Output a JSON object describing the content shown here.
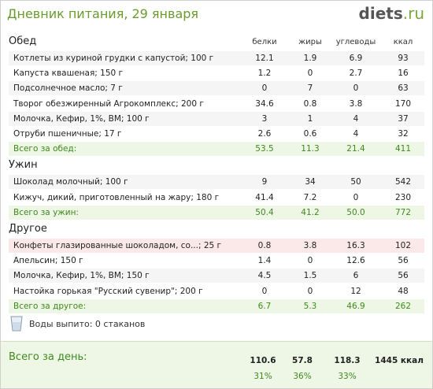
{
  "header": {
    "title": "Дневник питания, 29 января",
    "logo_main": "diets",
    "logo_tld": ".ru"
  },
  "columns": {
    "protein": "белки",
    "fat": "жиры",
    "carbs": "углеводы",
    "kcal": "ккал"
  },
  "sections": [
    {
      "title": "Обед",
      "rows": [
        {
          "name": "Котлеты из куриной грудки с капустой; 100 г",
          "protein": "12.1",
          "fat": "1.9",
          "carbs": "6.9",
          "kcal": "93"
        },
        {
          "name": "Капуста квашеная; 150 г",
          "protein": "1.2",
          "fat": "0",
          "carbs": "2.7",
          "kcal": "16"
        },
        {
          "name": "Подсолнечное масло; 7 г",
          "protein": "0",
          "fat": "7",
          "carbs": "0",
          "kcal": "63"
        },
        {
          "name": "Творог обезжиренный Агрокомплекс; 200 г",
          "protein": "34.6",
          "fat": "0.8",
          "carbs": "3.8",
          "kcal": "170"
        },
        {
          "name": "Молочка, Кефир, 1%, ВМ; 100 г",
          "protein": "3",
          "fat": "1",
          "carbs": "4",
          "kcal": "37"
        },
        {
          "name": "Отруби пшеничные; 17 г",
          "protein": "2.6",
          "fat": "0.6",
          "carbs": "4",
          "kcal": "32"
        }
      ],
      "total": {
        "name": "Всего за обед:",
        "protein": "53.5",
        "fat": "11.3",
        "carbs": "21.4",
        "kcal": "411"
      }
    },
    {
      "title": "Ужин",
      "rows": [
        {
          "name": "Шоколад молочный; 100 г",
          "protein": "9",
          "fat": "34",
          "carbs": "50",
          "kcal": "542"
        },
        {
          "name": "Кижуч, дикий, приготовленный на жару; 180 г",
          "protein": "41.4",
          "fat": "7.2",
          "carbs": "0",
          "kcal": "230"
        }
      ],
      "total": {
        "name": "Всего за ужин:",
        "protein": "50.4",
        "fat": "41.2",
        "carbs": "50.0",
        "kcal": "772"
      }
    },
    {
      "title": "Другое",
      "rows": [
        {
          "name": "Конфеты глазированные шоколадом, со...; 25 г",
          "protein": "0.8",
          "fat": "3.8",
          "carbs": "16.3",
          "kcal": "102",
          "highlight": true
        },
        {
          "name": "Апельсин; 150 г",
          "protein": "1.4",
          "fat": "0",
          "carbs": "12.6",
          "kcal": "56"
        },
        {
          "name": "Молочка, Кефир, 1%, ВМ; 150 г",
          "protein": "4.5",
          "fat": "1.5",
          "carbs": "6",
          "kcal": "56"
        },
        {
          "name": "Настойка горькая \"Русский сувенир\"; 200 г",
          "protein": "0",
          "fat": "0",
          "carbs": "12",
          "kcal": "48"
        }
      ],
      "total": {
        "name": "Всего за другое:",
        "protein": "6.7",
        "fat": "5.3",
        "carbs": "46.9",
        "kcal": "262"
      }
    }
  ],
  "water": {
    "label": "Воды выпито: 0 стаканов",
    "icon": "glass-icon"
  },
  "day_total": {
    "label": "Всего за день:",
    "protein": "110.6",
    "fat": "57.8",
    "carbs": "118.3",
    "kcal": "1445 ккал",
    "protein_pct": "31%",
    "fat_pct": "36%",
    "carbs_pct": "33%"
  },
  "colors": {
    "accent_green": "#3f8a1e",
    "title_green": "#6a9b2e",
    "total_bg": "#eef6e6",
    "warn_bg": "#fbe9e9"
  }
}
